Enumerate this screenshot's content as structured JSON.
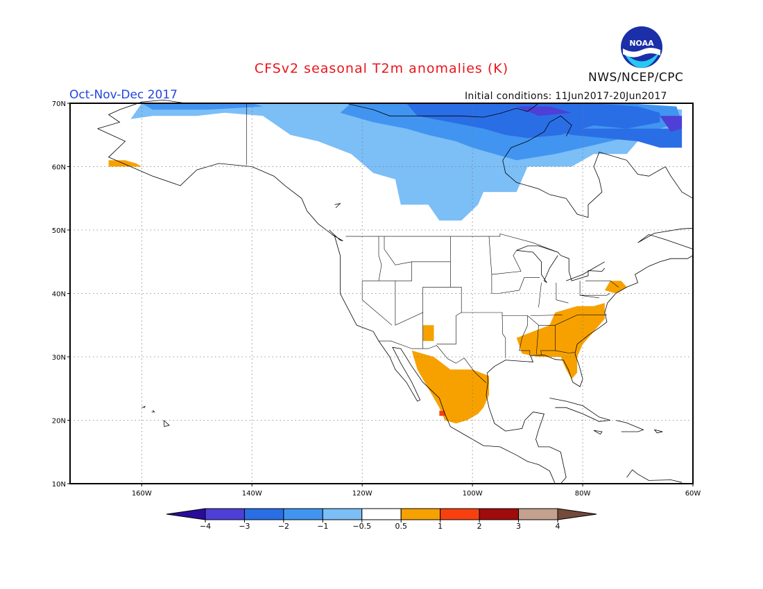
{
  "header": {
    "title": "CFSv2 seasonal T2m anomalies (K)",
    "season": "Oct-Nov-Dec 2017",
    "initial_conditions": "Initial conditions: 11Jun2017-20Jun2017",
    "agency": "NWS/NCEP/CPC",
    "logo_text": "NOAA"
  },
  "map": {
    "lon_range": [
      -173,
      -60
    ],
    "lat_range": [
      10,
      70
    ],
    "lon_ticks": [
      {
        "value": -160,
        "label": "160W"
      },
      {
        "value": -140,
        "label": "140W"
      },
      {
        "value": -120,
        "label": "120W"
      },
      {
        "value": -100,
        "label": "100W"
      },
      {
        "value": -80,
        "label": "80W"
      },
      {
        "value": -60,
        "label": "60W"
      }
    ],
    "lat_ticks": [
      {
        "value": 10,
        "label": "10N"
      },
      {
        "value": 20,
        "label": "20N"
      },
      {
        "value": 30,
        "label": "30N"
      },
      {
        "value": 40,
        "label": "40N"
      },
      {
        "value": 50,
        "label": "50N"
      },
      {
        "value": 60,
        "label": "60N"
      },
      {
        "value": 70,
        "label": "70N"
      }
    ],
    "grid": "dotted"
  },
  "colorbar": {
    "bins": [
      {
        "color": "#2a0c9c"
      },
      {
        "color": "#4e3fd6"
      },
      {
        "color": "#2a6ee6"
      },
      {
        "color": "#4195f0"
      },
      {
        "color": "#7cbef6"
      },
      {
        "color": "#ffffff"
      },
      {
        "color": "#f7a100"
      },
      {
        "color": "#f8400f"
      },
      {
        "color": "#a00b0b"
      },
      {
        "color": "#c4a08e"
      },
      {
        "color": "#75493c"
      }
    ],
    "labels": [
      "-4",
      "-3",
      "-2",
      "-1",
      "-0.5",
      "0.5",
      "1",
      "2",
      "3",
      "4"
    ]
  },
  "anomaly_regions": [
    {
      "name": "arctic-canada-cool",
      "level": "-1 to -0.5",
      "color": "#7cbef6",
      "polygon": [
        [
          -160,
          70
        ],
        [
          -115,
          70
        ],
        [
          -101,
          70
        ],
        [
          -88,
          70
        ],
        [
          -72,
          70
        ],
        [
          -62,
          69
        ],
        [
          -62,
          66
        ],
        [
          -70,
          64
        ],
        [
          -72,
          62
        ],
        [
          -78,
          62
        ],
        [
          -82,
          60
        ],
        [
          -90,
          60
        ],
        [
          -92,
          56
        ],
        [
          -98,
          56
        ],
        [
          -99,
          54
        ],
        [
          -102,
          51.5
        ],
        [
          -106,
          51.5
        ],
        [
          -108,
          54
        ],
        [
          -113,
          54
        ],
        [
          -114,
          58
        ],
        [
          -118,
          59
        ],
        [
          -122,
          62
        ],
        [
          -128,
          64
        ],
        [
          -133,
          65
        ],
        [
          -138,
          68
        ],
        [
          -145,
          68.5
        ],
        [
          -150,
          68
        ],
        [
          -158,
          68
        ],
        [
          -162,
          67.5
        ]
      ]
    },
    {
      "name": "hudson-bay-cool",
      "level": "-2 to -1",
      "color": "#4195f0",
      "polygon": [
        [
          -122,
          70
        ],
        [
          -88,
          70
        ],
        [
          -72,
          70
        ],
        [
          -63,
          69.5
        ],
        [
          -62,
          67
        ],
        [
          -70,
          65
        ],
        [
          -75,
          64
        ],
        [
          -80,
          63
        ],
        [
          -85,
          62
        ],
        [
          -92,
          61
        ],
        [
          -96,
          62
        ],
        [
          -100,
          63
        ],
        [
          -103,
          64
        ],
        [
          -108,
          65
        ],
        [
          -112,
          66
        ],
        [
          -118,
          67
        ],
        [
          -124,
          68.5
        ]
      ]
    },
    {
      "name": "baffin-cool",
      "level": "-2 to -1",
      "color": "#4195f0",
      "polygon": [
        [
          -160,
          70
        ],
        [
          -140,
          70
        ],
        [
          -138,
          69.5
        ],
        [
          -148,
          69
        ],
        [
          -158,
          69
        ]
      ]
    },
    {
      "name": "baffin-strong-cool",
      "level": "-3 to -2",
      "color": "#2a6ee6",
      "polygon": [
        [
          -112,
          70
        ],
        [
          -86,
          70
        ],
        [
          -78,
          70
        ],
        [
          -70,
          69.5
        ],
        [
          -66,
          68.5
        ],
        [
          -66,
          67
        ],
        [
          -72,
          66
        ],
        [
          -78,
          66.5
        ],
        [
          -84,
          65
        ],
        [
          -90,
          64.5
        ],
        [
          -94,
          65
        ],
        [
          -98,
          66
        ],
        [
          -104,
          67
        ],
        [
          -110,
          68
        ]
      ]
    },
    {
      "name": "labrador-strong-cool",
      "level": "-3 to -2",
      "color": "#2a6ee6",
      "polygon": [
        [
          -86,
          66
        ],
        [
          -80,
          66
        ],
        [
          -72,
          66
        ],
        [
          -66,
          66
        ],
        [
          -62,
          66
        ],
        [
          -62,
          63
        ],
        [
          -66,
          63
        ],
        [
          -70,
          64
        ],
        [
          -76,
          64.5
        ],
        [
          -82,
          65
        ]
      ]
    },
    {
      "name": "greenland-cold",
      "level": "-3 to -4",
      "color": "#4e3fd6",
      "polygon": [
        [
          -92,
          69.5
        ],
        [
          -86,
          69.5
        ],
        [
          -82,
          68.5
        ],
        [
          -88,
          68
        ]
      ]
    },
    {
      "name": "greenland-cold-2",
      "level": "-3 to -4",
      "color": "#4e3fd6",
      "polygon": [
        [
          -66,
          68
        ],
        [
          -62,
          68
        ],
        [
          -62,
          66
        ],
        [
          -64,
          65.5
        ]
      ]
    },
    {
      "name": "alaska-warm",
      "level": "0.5 to 1",
      "color": "#f7a100",
      "polygon": [
        [
          -166,
          61
        ],
        [
          -163,
          61
        ],
        [
          -161,
          60.5
        ],
        [
          -160,
          60
        ],
        [
          -163,
          60
        ],
        [
          -166,
          60
        ]
      ]
    },
    {
      "name": "southwest-warm",
      "level": "0.5 to 1",
      "color": "#f7a100",
      "polygon": [
        [
          -109,
          35
        ],
        [
          -107,
          35
        ],
        [
          -107,
          32.5
        ],
        [
          -109,
          32.5
        ]
      ]
    },
    {
      "name": "mexico-warm",
      "level": "0.5 to 1",
      "color": "#f7a100",
      "polygon": [
        [
          -111,
          31
        ],
        [
          -107,
          30
        ],
        [
          -104,
          28
        ],
        [
          -100,
          28
        ],
        [
          -97,
          27
        ],
        [
          -97,
          24
        ],
        [
          -98,
          22
        ],
        [
          -99,
          21
        ],
        [
          -101,
          20
        ],
        [
          -103,
          19.5
        ],
        [
          -105,
          20
        ],
        [
          -106,
          22
        ],
        [
          -108,
          25
        ],
        [
          -110,
          28
        ]
      ]
    },
    {
      "name": "southeast-warm",
      "level": "0.5 to 1",
      "color": "#f7a100",
      "polygon": [
        [
          -85,
          37
        ],
        [
          -81,
          38
        ],
        [
          -78,
          38
        ],
        [
          -76,
          38.5
        ],
        [
          -76,
          36
        ],
        [
          -78,
          34
        ],
        [
          -80,
          32
        ],
        [
          -81,
          30
        ],
        [
          -81,
          27.5
        ],
        [
          -82,
          26.5
        ],
        [
          -83,
          28
        ],
        [
          -84,
          30
        ],
        [
          -88,
          30
        ],
        [
          -91,
          30.5
        ],
        [
          -92,
          33
        ],
        [
          -89,
          34
        ],
        [
          -86,
          35
        ]
      ]
    },
    {
      "name": "northeast-warm",
      "level": "0.5 to 1",
      "color": "#f7a100",
      "polygon": [
        [
          -75,
          42
        ],
        [
          -73,
          42
        ],
        [
          -72,
          41
        ],
        [
          -74,
          40
        ],
        [
          -76,
          40.5
        ]
      ]
    },
    {
      "name": "mexico-hot",
      "level": "1 to 2",
      "color": "#f8400f",
      "polygon": [
        [
          -106,
          21.5
        ],
        [
          -105,
          21.5
        ],
        [
          -105,
          20.7
        ],
        [
          -106,
          20.7
        ]
      ]
    }
  ],
  "land_outline_note": "coastlines drawn as outlines"
}
